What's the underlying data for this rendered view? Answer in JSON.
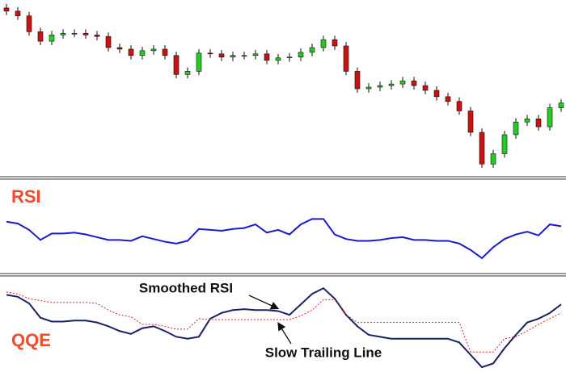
{
  "chart_data": [
    {
      "type": "candlestick",
      "ylim": [
        0,
        220
      ],
      "up_color": "#22cc22",
      "down_color": "#cc1111",
      "open": [
        212,
        208,
        202,
        182,
        170,
        178,
        180,
        180,
        178,
        176,
        162,
        160,
        152,
        158,
        160,
        152,
        128,
        132,
        155,
        154,
        150,
        152,
        152,
        154,
        146,
        149,
        150,
        156,
        162,
        172,
        164,
        132,
        110,
        112,
        114,
        116,
        120,
        114,
        108,
        100,
        94,
        82,
        55,
        15,
        28,
        52,
        68,
        72,
        62,
        86
      ],
      "high": [
        217,
        213,
        207,
        187,
        183,
        185,
        185,
        185,
        183,
        181,
        167,
        165,
        163,
        165,
        165,
        157,
        137,
        160,
        160,
        159,
        157,
        157,
        159,
        159,
        154,
        155,
        161,
        167,
        177,
        177,
        169,
        137,
        117,
        119,
        121,
        125,
        125,
        119,
        113,
        105,
        99,
        87,
        60,
        33,
        57,
        73,
        77,
        77,
        91,
        97
      ],
      "low": [
        203,
        197,
        177,
        165,
        165,
        173,
        175,
        173,
        171,
        157,
        155,
        147,
        147,
        153,
        147,
        123,
        123,
        127,
        149,
        145,
        145,
        147,
        147,
        141,
        141,
        144,
        145,
        151,
        157,
        159,
        127,
        105,
        105,
        107,
        109,
        111,
        109,
        103,
        95,
        89,
        77,
        50,
        10,
        10,
        23,
        47,
        63,
        57,
        57,
        81
      ],
      "close": [
        208,
        202,
        182,
        170,
        178,
        180,
        180,
        178,
        176,
        162,
        160,
        152,
        158,
        160,
        152,
        128,
        132,
        155,
        154,
        150,
        152,
        152,
        154,
        146,
        149,
        150,
        156,
        162,
        172,
        164,
        132,
        110,
        112,
        114,
        116,
        120,
        114,
        108,
        100,
        94,
        82,
        55,
        15,
        28,
        52,
        68,
        72,
        62,
        86,
        92
      ]
    },
    {
      "type": "line",
      "title": "RSI",
      "ylim": [
        0,
        100
      ],
      "series": [
        {
          "color": "#1a1acc",
          "values": [
            56,
            54,
            47,
            36,
            43,
            43,
            44,
            42,
            39,
            36,
            36,
            35,
            40,
            37,
            34,
            32,
            35,
            48,
            47,
            46,
            48,
            49,
            53,
            44,
            47,
            42,
            53,
            59,
            59,
            42,
            37,
            35,
            35,
            36,
            38,
            39,
            36,
            36,
            35,
            35,
            32,
            25,
            16,
            28,
            37,
            42,
            45,
            41,
            53,
            51
          ]
        }
      ]
    },
    {
      "type": "line",
      "title": "QQE",
      "ylim": [
        0,
        100
      ],
      "annotations": [
        {
          "text": "Smoothed RSI",
          "series": 0,
          "index": 24
        },
        {
          "text": "Slow Trailing Line",
          "series": 1,
          "index": 24
        }
      ],
      "series": [
        {
          "color": "#1a2266",
          "values": [
            81,
            79,
            72,
            57,
            53,
            53,
            54,
            54,
            52,
            48,
            43,
            40,
            46,
            48,
            43,
            37,
            35,
            37,
            56,
            62,
            65,
            66,
            65,
            65,
            64,
            60,
            71,
            82,
            88,
            77,
            60,
            48,
            39,
            37,
            35,
            35,
            35,
            35,
            35,
            35,
            31,
            18,
            5,
            9,
            25,
            39,
            52,
            56,
            62,
            71
          ]
        },
        {
          "color": "#e02020",
          "dashed": true,
          "values": [
            84,
            82,
            77,
            75,
            73,
            73,
            73,
            73,
            72,
            65,
            60,
            58,
            50,
            50,
            48,
            45,
            45,
            56,
            55,
            55,
            55,
            55,
            55,
            55,
            55,
            55,
            59,
            65,
            76,
            76,
            60,
            52,
            52,
            52,
            52,
            52,
            52,
            52,
            52,
            52,
            52,
            21,
            21,
            21,
            35,
            37,
            43,
            50,
            56,
            62
          ]
        }
      ]
    }
  ]
}
